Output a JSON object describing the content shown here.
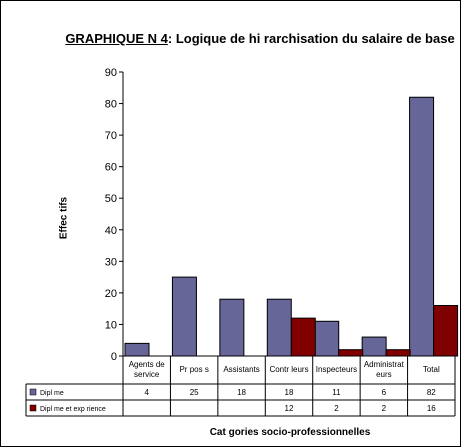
{
  "title": {
    "lead": "GRAPHIQUE N 4",
    "text": ": Logique de hi  rarchisation du salaire de base"
  },
  "chart_data": {
    "type": "bar",
    "xlabel": "Cat  gories socio-professionnelles",
    "ylabel": "Effec tifs",
    "ylim": [
      0,
      90
    ],
    "yticks": [
      0,
      10,
      20,
      30,
      40,
      50,
      60,
      70,
      80,
      90
    ],
    "categories": [
      "Agents de service",
      "Pr  pos  s",
      "Assistants",
      "Contr  leurs",
      "Inspecteurs",
      "Administrat eurs",
      "Total"
    ],
    "category_lines": [
      [
        "Agents de",
        "service"
      ],
      [
        "Pr  pos  s"
      ],
      [
        "Assistants"
      ],
      [
        "Contr  leurs"
      ],
      [
        "Inspecteurs"
      ],
      [
        "Administrat",
        "eurs"
      ],
      [
        "Total"
      ]
    ],
    "series": [
      {
        "name": "Dipl  me",
        "color": "#666699",
        "values": [
          4,
          25,
          18,
          18,
          11,
          6,
          82
        ]
      },
      {
        "name": "Dipl  me et exp  rience",
        "color": "#800000",
        "values": [
          null,
          null,
          null,
          12,
          2,
          2,
          16
        ]
      }
    ],
    "grid": false,
    "legend": "data table below chart"
  }
}
